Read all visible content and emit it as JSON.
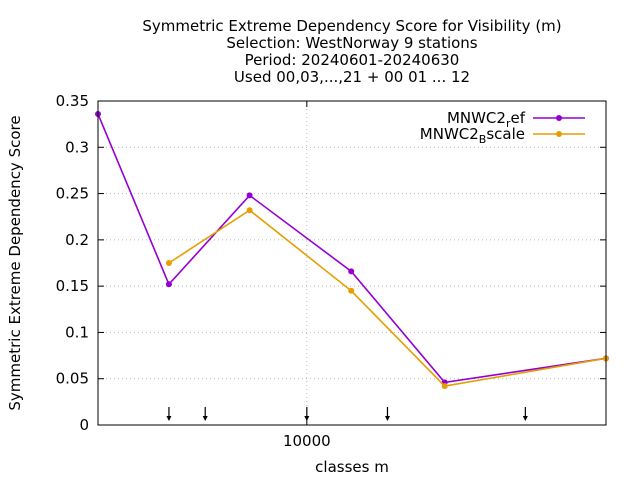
{
  "chart_data": {
    "type": "line",
    "title_lines": [
      "Symmetric Extreme Dependency Score  for Visibility (m)",
      "Selection: WestNorway      9 stations",
      "Period: 20240601-20240630",
      "Used 00,03,...,21 + 00 01 ... 12"
    ],
    "xlabel": "classes m",
    "ylabel": "Symmetric Extreme Dependency Score",
    "x_scale": "log",
    "xlim": [
      3500,
      45000
    ],
    "ylim": [
      0,
      0.35
    ],
    "y_ticks": [
      0,
      0.05,
      0.1,
      0.15,
      0.2,
      0.25,
      0.3,
      0.35
    ],
    "y_tick_labels": [
      "0",
      "0.05",
      "0.1",
      "0.15",
      "0.2",
      "0.25",
      "0.3",
      "0.35"
    ],
    "x_ticks": [
      10000
    ],
    "x_tick_labels": [
      "10000"
    ],
    "class_markers_x": [
      5000,
      6000,
      10000,
      15000,
      30000
    ],
    "grid": true,
    "legend_position": "top-right",
    "series": [
      {
        "name": "MNWC2_ref",
        "legend_main": "MNWC2",
        "legend_sub": "r",
        "legend_rest": "ef",
        "color": "#9400d3",
        "x": [
          3500,
          5000,
          7500,
          12500,
          20000,
          45000
        ],
        "y": [
          0.336,
          0.152,
          0.248,
          0.166,
          0.046,
          0.072
        ]
      },
      {
        "name": "MNWC2_Bscale",
        "legend_main": "MNWC2",
        "legend_sub": "B",
        "legend_rest": "scale",
        "color": "#e69f00",
        "x": [
          5000,
          7500,
          12500,
          20000,
          45000
        ],
        "y": [
          0.175,
          0.232,
          0.145,
          0.042,
          0.072
        ]
      }
    ]
  }
}
